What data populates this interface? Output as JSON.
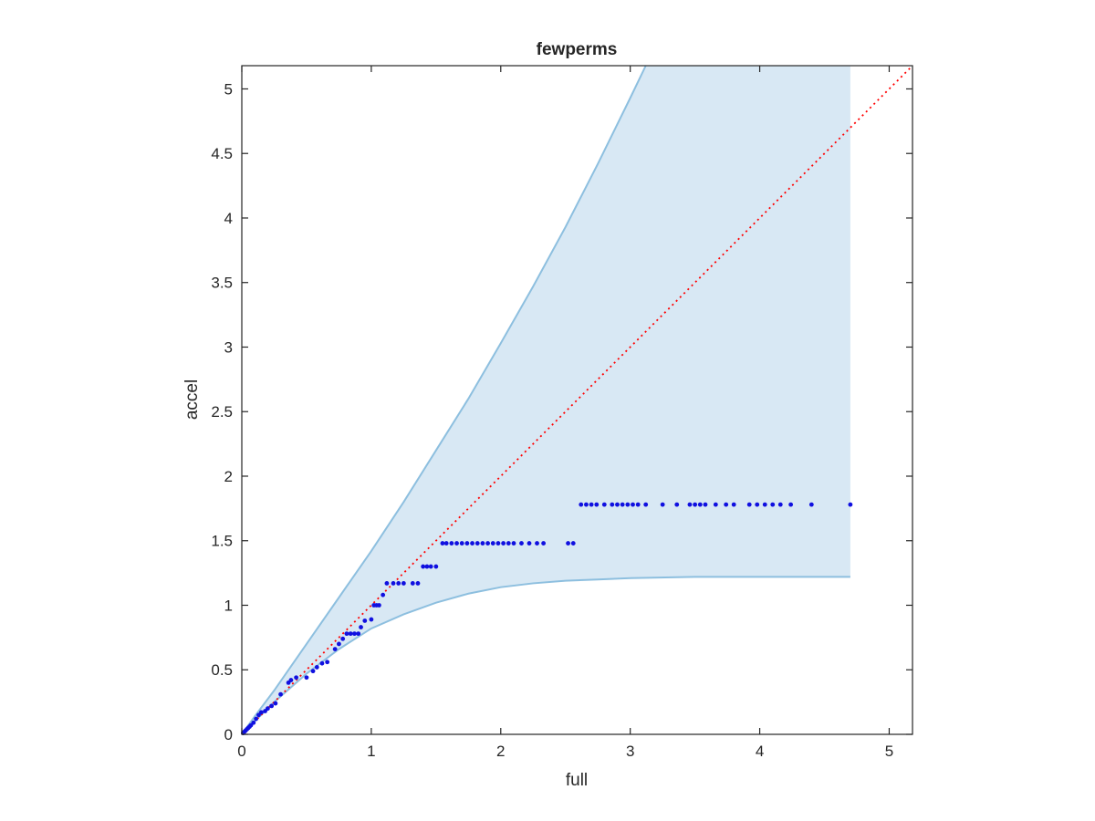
{
  "chart_data": {
    "type": "scatter",
    "title": "fewperms",
    "xlabel": "full",
    "ylabel": "accel",
    "xlim": [
      0,
      5.18
    ],
    "ylim": [
      0,
      5.18
    ],
    "xticks": [
      "0",
      "1",
      "2",
      "3",
      "4",
      "5"
    ],
    "yticks": [
      "0",
      "0.5",
      "1",
      "1.5",
      "2",
      "2.5",
      "3",
      "3.5",
      "4",
      "4.5",
      "5"
    ],
    "grid": false,
    "legend": "none",
    "colors": {
      "points": "#1010e0",
      "band_fill": "#d8e8f4",
      "band_edge": "#8dbfdf",
      "diagonal": "#ff0000",
      "axes": "#262626"
    },
    "reference_line": {
      "style": "dotted",
      "from": [
        0,
        0
      ],
      "to": [
        5.18,
        5.18
      ]
    },
    "band": {
      "upper": [
        [
          0,
          0
        ],
        [
          0.1,
          0.14
        ],
        [
          0.25,
          0.34
        ],
        [
          0.5,
          0.7
        ],
        [
          0.75,
          1.06
        ],
        [
          1.0,
          1.42
        ],
        [
          1.25,
          1.8
        ],
        [
          1.5,
          2.2
        ],
        [
          1.75,
          2.6
        ],
        [
          2.0,
          3.03
        ],
        [
          2.25,
          3.47
        ],
        [
          2.5,
          3.93
        ],
        [
          2.75,
          4.42
        ],
        [
          3.0,
          4.93
        ],
        [
          3.12,
          5.18
        ]
      ],
      "upper_cap_x_end": 4.7,
      "lower": [
        [
          0,
          0
        ],
        [
          0.1,
          0.1
        ],
        [
          0.25,
          0.25
        ],
        [
          0.5,
          0.47
        ],
        [
          0.75,
          0.66
        ],
        [
          1.0,
          0.82
        ],
        [
          1.25,
          0.93
        ],
        [
          1.5,
          1.02
        ],
        [
          1.75,
          1.09
        ],
        [
          2.0,
          1.14
        ],
        [
          2.25,
          1.17
        ],
        [
          2.5,
          1.19
        ],
        [
          2.75,
          1.2
        ],
        [
          3.0,
          1.21
        ],
        [
          3.5,
          1.22
        ],
        [
          4.0,
          1.22
        ],
        [
          4.7,
          1.22
        ]
      ]
    },
    "series": [
      {
        "points": [
          [
            0.01,
            0.01
          ],
          [
            0.02,
            0.02
          ],
          [
            0.03,
            0.03
          ],
          [
            0.04,
            0.04
          ],
          [
            0.05,
            0.05
          ],
          [
            0.06,
            0.06
          ],
          [
            0.07,
            0.07
          ],
          [
            0.09,
            0.09
          ],
          [
            0.11,
            0.12
          ],
          [
            0.13,
            0.15
          ],
          [
            0.15,
            0.17
          ],
          [
            0.18,
            0.18
          ],
          [
            0.2,
            0.2
          ],
          [
            0.23,
            0.22
          ],
          [
            0.26,
            0.24
          ],
          [
            0.3,
            0.31
          ],
          [
            0.36,
            0.4
          ],
          [
            0.38,
            0.42
          ],
          [
            0.42,
            0.44
          ],
          [
            0.5,
            0.44
          ],
          [
            0.55,
            0.49
          ],
          [
            0.58,
            0.52
          ],
          [
            0.62,
            0.55
          ],
          [
            0.66,
            0.56
          ],
          [
            0.72,
            0.66
          ],
          [
            0.75,
            0.7
          ],
          [
            0.78,
            0.74
          ],
          [
            0.81,
            0.78
          ],
          [
            0.84,
            0.78
          ],
          [
            0.87,
            0.78
          ],
          [
            0.9,
            0.78
          ],
          [
            0.92,
            0.83
          ],
          [
            0.95,
            0.88
          ],
          [
            1.0,
            0.89
          ],
          [
            1.02,
            1.0
          ],
          [
            1.04,
            1.0
          ],
          [
            1.06,
            1.0
          ],
          [
            1.09,
            1.08
          ],
          [
            1.12,
            1.17
          ],
          [
            1.17,
            1.17
          ],
          [
            1.21,
            1.17
          ],
          [
            1.25,
            1.17
          ],
          [
            1.32,
            1.17
          ],
          [
            1.36,
            1.17
          ],
          [
            1.4,
            1.3
          ],
          [
            1.43,
            1.3
          ],
          [
            1.46,
            1.3
          ],
          [
            1.5,
            1.3
          ],
          [
            1.55,
            1.48
          ],
          [
            1.58,
            1.48
          ],
          [
            1.62,
            1.48
          ],
          [
            1.66,
            1.48
          ],
          [
            1.7,
            1.48
          ],
          [
            1.74,
            1.48
          ],
          [
            1.78,
            1.48
          ],
          [
            1.82,
            1.48
          ],
          [
            1.86,
            1.48
          ],
          [
            1.9,
            1.48
          ],
          [
            1.94,
            1.48
          ],
          [
            1.98,
            1.48
          ],
          [
            2.02,
            1.48
          ],
          [
            2.06,
            1.48
          ],
          [
            2.1,
            1.48
          ],
          [
            2.16,
            1.48
          ],
          [
            2.22,
            1.48
          ],
          [
            2.28,
            1.48
          ],
          [
            2.33,
            1.48
          ],
          [
            2.52,
            1.48
          ],
          [
            2.56,
            1.48
          ],
          [
            2.62,
            1.78
          ],
          [
            2.66,
            1.78
          ],
          [
            2.7,
            1.78
          ],
          [
            2.74,
            1.78
          ],
          [
            2.8,
            1.78
          ],
          [
            2.86,
            1.78
          ],
          [
            2.9,
            1.78
          ],
          [
            2.94,
            1.78
          ],
          [
            2.98,
            1.78
          ],
          [
            3.02,
            1.78
          ],
          [
            3.06,
            1.78
          ],
          [
            3.12,
            1.78
          ],
          [
            3.25,
            1.78
          ],
          [
            3.36,
            1.78
          ],
          [
            3.46,
            1.78
          ],
          [
            3.5,
            1.78
          ],
          [
            3.54,
            1.78
          ],
          [
            3.58,
            1.78
          ],
          [
            3.66,
            1.78
          ],
          [
            3.74,
            1.78
          ],
          [
            3.8,
            1.78
          ],
          [
            3.92,
            1.78
          ],
          [
            3.98,
            1.78
          ],
          [
            4.04,
            1.78
          ],
          [
            4.1,
            1.78
          ],
          [
            4.16,
            1.78
          ],
          [
            4.24,
            1.78
          ],
          [
            4.4,
            1.78
          ],
          [
            4.7,
            1.78
          ]
        ]
      }
    ]
  }
}
